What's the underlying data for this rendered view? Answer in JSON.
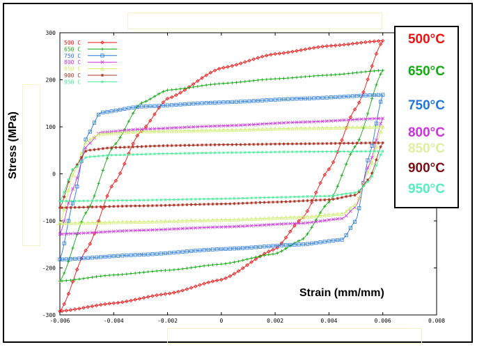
{
  "chart_data": {
    "type": "line",
    "title": "",
    "xlabel": "Strain (mm/mm)",
    "ylabel": "Stress (MPa)",
    "xlim": [
      -0.006,
      0.008
    ],
    "ylim": [
      -300,
      300
    ],
    "x_ticks": [
      "-0.006",
      "-0.004",
      "-0.002",
      "0",
      "0.002",
      "0.004",
      "0.006",
      "0.008"
    ],
    "y_ticks": [
      "300",
      "200",
      "100",
      "0",
      "-100",
      "-200",
      "-300"
    ],
    "grid": false,
    "legend_placement": "top-left",
    "series": [
      {
        "name": "500 C",
        "temp_label": "500°C",
        "color": "#ee1111",
        "marker": "diamond",
        "strain_range": [
          -0.006,
          0.006
        ],
        "peak_stress": 283,
        "min_stress": -292,
        "plateau_upper": [
          [
            -0.006,
            -292
          ],
          [
            -0.005,
            -160
          ],
          [
            -0.004,
            -20
          ],
          [
            -0.003,
            90
          ],
          [
            -0.002,
            160
          ],
          [
            0.0,
            225
          ],
          [
            0.002,
            255
          ],
          [
            0.004,
            272
          ],
          [
            0.006,
            283
          ]
        ],
        "plateau_lower": [
          [
            0.006,
            283
          ],
          [
            0.005,
            140
          ],
          [
            0.004,
            10
          ],
          [
            0.003,
            -95
          ],
          [
            0.002,
            -160
          ],
          [
            0.0,
            -225
          ],
          [
            -0.002,
            -255
          ],
          [
            -0.004,
            -275
          ],
          [
            -0.006,
            -292
          ]
        ]
      },
      {
        "name": "650 C",
        "temp_label": "650°C",
        "color": "#11aa11",
        "marker": "plus",
        "strain_range": [
          -0.006,
          0.006
        ],
        "peak_stress": 220,
        "min_stress": -228,
        "plateau_upper": [
          [
            -0.006,
            -228
          ],
          [
            -0.005,
            -80
          ],
          [
            -0.004,
            60
          ],
          [
            -0.003,
            150
          ],
          [
            -0.002,
            178
          ],
          [
            0.0,
            192
          ],
          [
            0.002,
            202
          ],
          [
            0.004,
            210
          ],
          [
            0.006,
            220
          ]
        ],
        "plateau_lower": [
          [
            0.006,
            220
          ],
          [
            0.005,
            60
          ],
          [
            0.004,
            -60
          ],
          [
            0.003,
            -140
          ],
          [
            0.002,
            -170
          ],
          [
            0.0,
            -192
          ],
          [
            -0.002,
            -205
          ],
          [
            -0.004,
            -215
          ],
          [
            -0.006,
            -228
          ]
        ]
      },
      {
        "name": "750 C",
        "temp_label": "750°C",
        "color": "#2277dd",
        "marker": "square",
        "strain_range": [
          -0.006,
          0.006
        ],
        "peak_stress": 168,
        "min_stress": -182,
        "plateau_upper": [
          [
            -0.006,
            -182
          ],
          [
            -0.0055,
            -60
          ],
          [
            -0.005,
            80
          ],
          [
            -0.0045,
            130
          ],
          [
            -0.003,
            143
          ],
          [
            0.0,
            152
          ],
          [
            0.003,
            160
          ],
          [
            0.006,
            168
          ]
        ],
        "plateau_lower": [
          [
            0.006,
            168
          ],
          [
            0.0055,
            40
          ],
          [
            0.005,
            -100
          ],
          [
            0.0045,
            -140
          ],
          [
            0.003,
            -150
          ],
          [
            0.0,
            -160
          ],
          [
            -0.003,
            -172
          ],
          [
            -0.006,
            -182
          ]
        ]
      },
      {
        "name": "800 C",
        "temp_label": "800°C",
        "color": "#cc33dd",
        "marker": "cross",
        "strain_range": [
          -0.006,
          0.006
        ],
        "peak_stress": 118,
        "min_stress": -128,
        "plateau_upper": [
          [
            -0.006,
            -128
          ],
          [
            -0.0055,
            -30
          ],
          [
            -0.005,
            60
          ],
          [
            -0.0045,
            88
          ],
          [
            -0.003,
            95
          ],
          [
            0.0,
            102
          ],
          [
            0.003,
            110
          ],
          [
            0.006,
            118
          ]
        ],
        "plateau_lower": [
          [
            0.006,
            118
          ],
          [
            0.0055,
            20
          ],
          [
            0.005,
            -70
          ],
          [
            0.0045,
            -95
          ],
          [
            0.003,
            -105
          ],
          [
            0.0,
            -113
          ],
          [
            -0.003,
            -120
          ],
          [
            -0.006,
            -128
          ]
        ]
      },
      {
        "name": "850 C",
        "temp_label": "850°C",
        "color": "#ccee66",
        "label_color": "#ddf0a0",
        "marker": "triangle",
        "strain_range": [
          -0.006,
          0.006
        ],
        "peak_stress": 100,
        "min_stress": -105,
        "plateau_upper": [
          [
            -0.006,
            -105
          ],
          [
            -0.0055,
            0
          ],
          [
            -0.005,
            70
          ],
          [
            -0.0045,
            85
          ],
          [
            -0.003,
            90
          ],
          [
            0.0,
            93
          ],
          [
            0.003,
            97
          ],
          [
            0.006,
            100
          ]
        ],
        "plateau_lower": [
          [
            0.006,
            100
          ],
          [
            0.0055,
            10
          ],
          [
            0.005,
            -65
          ],
          [
            0.0045,
            -85
          ],
          [
            0.003,
            -92
          ],
          [
            0.0,
            -98
          ],
          [
            -0.003,
            -102
          ],
          [
            -0.006,
            -105
          ]
        ]
      },
      {
        "name": "900 C",
        "temp_label": "900°C",
        "color": "#aa3322",
        "label_color": "#7a1015",
        "marker": "asterisk",
        "strain_range": [
          -0.006,
          0.006
        ],
        "peak_stress": 66,
        "min_stress": -72,
        "plateau_upper": [
          [
            -0.006,
            -72
          ],
          [
            -0.0055,
            10
          ],
          [
            -0.005,
            50
          ],
          [
            -0.004,
            56
          ],
          [
            -0.002,
            60
          ],
          [
            0.0,
            62
          ],
          [
            0.003,
            64
          ],
          [
            0.006,
            66
          ]
        ],
        "plateau_lower": [
          [
            0.006,
            66
          ],
          [
            0.0055,
            -10
          ],
          [
            0.005,
            -45
          ],
          [
            0.004,
            -55
          ],
          [
            0.002,
            -60
          ],
          [
            0.0,
            -64
          ],
          [
            -0.003,
            -68
          ],
          [
            -0.006,
            -72
          ]
        ]
      },
      {
        "name": "950 C",
        "temp_label": "950°C",
        "color": "#44ee99",
        "label_color": "#55eebb",
        "marker": "star",
        "strain_range": [
          -0.006,
          0.006
        ],
        "peak_stress": 48,
        "min_stress": -58,
        "plateau_upper": [
          [
            -0.006,
            -58
          ],
          [
            -0.0055,
            10
          ],
          [
            -0.005,
            36
          ],
          [
            -0.004,
            40
          ],
          [
            -0.002,
            43
          ],
          [
            0.0,
            45
          ],
          [
            0.003,
            47
          ],
          [
            0.006,
            48
          ]
        ],
        "plateau_lower": [
          [
            0.006,
            48
          ],
          [
            0.0055,
            -15
          ],
          [
            0.005,
            -40
          ],
          [
            0.004,
            -47
          ],
          [
            0.002,
            -50
          ],
          [
            0.0,
            -53
          ],
          [
            -0.003,
            -56
          ],
          [
            -0.006,
            -58
          ]
        ]
      }
    ]
  }
}
